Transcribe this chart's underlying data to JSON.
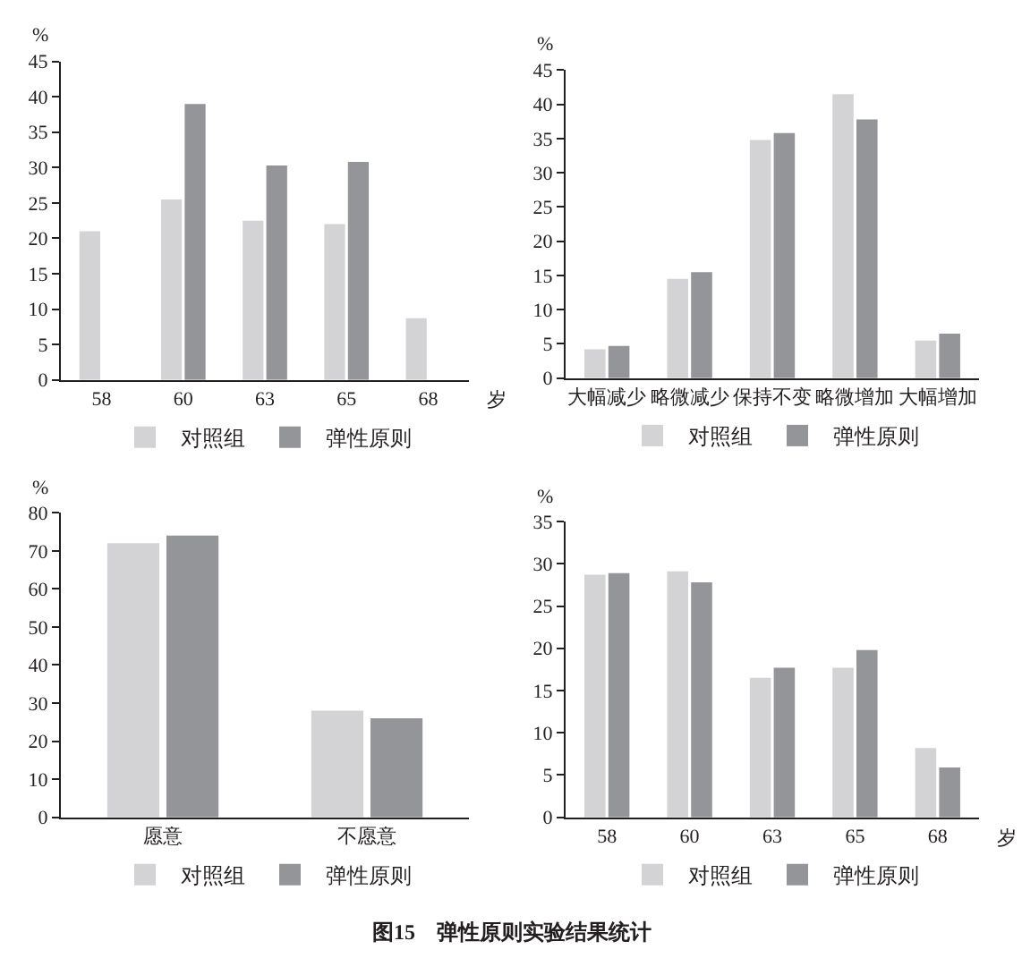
{
  "chart_data": [
    {
      "type": "bar",
      "ylabel": "%",
      "xlabel": "岁",
      "categories": [
        "58",
        "60",
        "63",
        "65",
        "68"
      ],
      "ylim": [
        0,
        45
      ],
      "yticks": [
        0,
        5,
        10,
        15,
        20,
        25,
        30,
        35,
        40,
        45
      ],
      "legend": "bottom",
      "annotations": [
        "图15　弹性原则实验结果统计"
      ],
      "series": [
        {
          "name": "对照组",
          "color": "#d3d3d5",
          "values": [
            21,
            25.5,
            22.5,
            22,
            8.7
          ]
        },
        {
          "name": "弹性原则",
          "color": "#939598",
          "values": [
            0,
            39,
            30.3,
            30.8,
            0
          ]
        }
      ]
    },
    {
      "type": "bar",
      "ylabel": "%",
      "categories": [
        "大幅减少",
        "略微减少",
        "保持不变",
        "略微增加",
        "大幅增加"
      ],
      "ylim": [
        0,
        45
      ],
      "yticks": [
        0,
        5,
        10,
        15,
        20,
        25,
        30,
        35,
        40,
        45
      ],
      "legend": "bottom",
      "series": [
        {
          "name": "对照组",
          "color": "#d3d3d5",
          "values": [
            4.2,
            14.5,
            34.8,
            41.5,
            5.5
          ]
        },
        {
          "name": "弹性原则",
          "color": "#939598",
          "values": [
            4.7,
            15.5,
            35.8,
            37.8,
            6.5
          ]
        }
      ]
    },
    {
      "type": "bar",
      "ylabel": "%",
      "categories": [
        "愿意",
        "不愿意"
      ],
      "ylim": [
        0,
        80
      ],
      "yticks": [
        0,
        10,
        20,
        30,
        40,
        50,
        60,
        70,
        80
      ],
      "legend": "bottom",
      "series": [
        {
          "name": "对照组",
          "color": "#d3d3d5",
          "values": [
            72,
            28
          ]
        },
        {
          "name": "弹性原则",
          "color": "#939598",
          "values": [
            74,
            26
          ]
        }
      ]
    },
    {
      "type": "bar",
      "ylabel": "%",
      "xlabel": "岁",
      "categories": [
        "58",
        "60",
        "63",
        "65",
        "68"
      ],
      "ylim": [
        0,
        35
      ],
      "yticks": [
        0,
        5,
        10,
        15,
        20,
        25,
        30,
        35
      ],
      "legend": "bottom",
      "series": [
        {
          "name": "对照组",
          "color": "#d3d3d5",
          "values": [
            28.7,
            29.1,
            16.5,
            17.7,
            8.2
          ]
        },
        {
          "name": "弹性原则",
          "color": "#939598",
          "values": [
            28.9,
            27.8,
            17.7,
            19.8,
            5.9
          ]
        }
      ]
    }
  ]
}
